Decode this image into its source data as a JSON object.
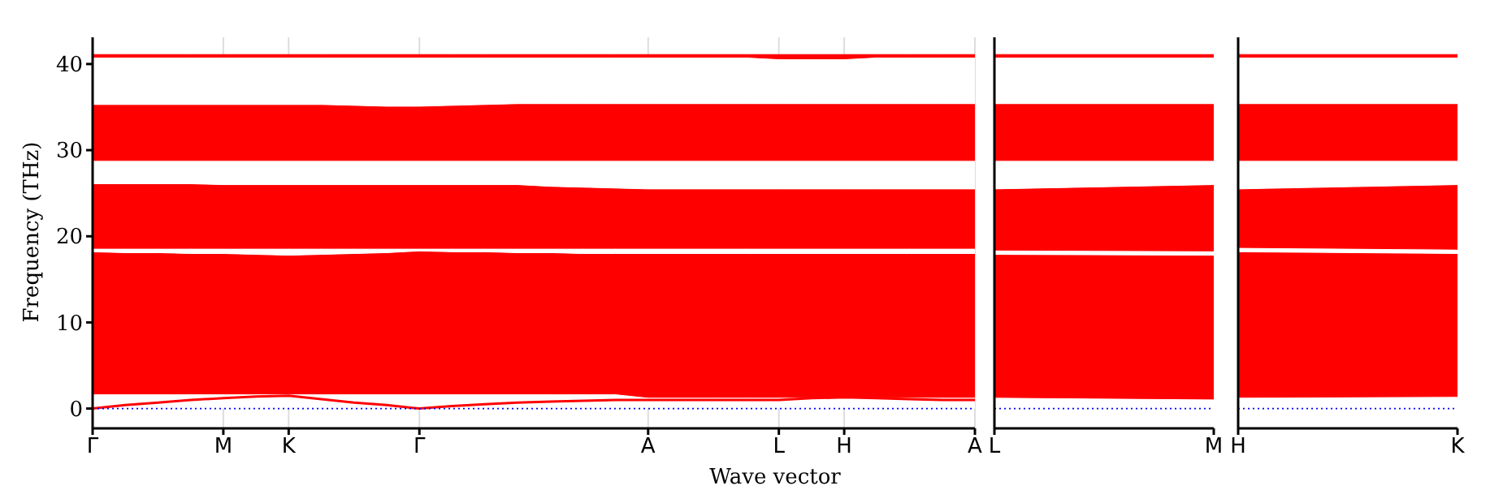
{
  "chart_data": [
    {
      "type": "area",
      "stacked": true,
      "xlabel": "Wave vector",
      "ylabel": "Frequency (THz)",
      "categories": [
        "Γ",
        null,
        null,
        null,
        "M",
        null,
        "K",
        null,
        null,
        null,
        "Γ",
        null,
        null,
        null,
        null,
        null,
        null,
        "A",
        null,
        null,
        null,
        "L",
        null,
        "H",
        null,
        null,
        null,
        "A"
      ],
      "ylim": [
        -2.3,
        43.1
      ],
      "yticks": [
        0,
        10,
        20,
        30,
        40
      ],
      "grid": "x",
      "ref_lines": [
        {
          "axis": "y",
          "value": 0,
          "color": "#0000ff",
          "line_style": "dotted"
        }
      ],
      "series": [
        {
          "color": "#ffffff",
          "values": [
            1.7,
            1.7,
            1.7,
            1.7,
            1.7,
            1.7,
            1.7,
            1.7,
            1.7,
            1.7,
            1.7,
            1.7,
            1.7,
            1.7,
            1.7,
            1.7,
            1.7,
            1.3,
            1.3,
            1.3,
            1.3,
            1.3,
            1.3,
            1.3,
            1.3,
            1.3,
            1.3,
            1.3
          ]
        },
        {
          "color": "#ff0000",
          "values": [
            16.5,
            16.4,
            16.4,
            16.3,
            16.3,
            16.2,
            16.1,
            16.2,
            16.3,
            16.4,
            16.6,
            16.5,
            16.5,
            16.4,
            16.4,
            16.3,
            16.3,
            16.7,
            16.7,
            16.7,
            16.7,
            16.7,
            16.7,
            16.7,
            16.7,
            16.7,
            16.7,
            16.7
          ]
        },
        {
          "color": "#ffffff",
          "values": [
            0.4,
            0.5,
            0.5,
            0.6,
            0.6,
            0.7,
            0.8,
            0.7,
            0.6,
            0.5,
            0.3,
            0.4,
            0.4,
            0.5,
            0.5,
            0.6,
            0.6,
            0.6,
            0.6,
            0.6,
            0.6,
            0.6,
            0.6,
            0.6,
            0.6,
            0.6,
            0.6,
            0.6
          ]
        },
        {
          "color": "#ff0000",
          "values": [
            7.5,
            7.5,
            7.5,
            7.5,
            7.4,
            7.4,
            7.4,
            7.4,
            7.4,
            7.4,
            7.4,
            7.4,
            7.4,
            7.4,
            7.2,
            7.1,
            7.0,
            6.9,
            6.9,
            6.9,
            6.9,
            6.9,
            6.9,
            6.9,
            6.9,
            6.9,
            6.9,
            6.9
          ]
        },
        {
          "color": "#ffffff",
          "values": [
            2.7,
            2.7,
            2.7,
            2.7,
            2.8,
            2.8,
            2.8,
            2.8,
            2.8,
            2.8,
            2.8,
            2.8,
            2.8,
            2.8,
            3.0,
            3.1,
            3.2,
            3.3,
            3.3,
            3.3,
            3.3,
            3.3,
            3.3,
            3.3,
            3.3,
            3.3,
            3.3,
            3.3
          ]
        },
        {
          "color": "#ff0000",
          "values": [
            6.5,
            6.5,
            6.5,
            6.5,
            6.5,
            6.5,
            6.5,
            6.5,
            6.4,
            6.3,
            6.3,
            6.4,
            6.5,
            6.6,
            6.6,
            6.6,
            6.6,
            6.6,
            6.6,
            6.6,
            6.6,
            6.6,
            6.6,
            6.6,
            6.6,
            6.6,
            6.6,
            6.6
          ]
        },
        {
          "color": "#ffffff",
          "values": [
            5.5,
            5.5,
            5.5,
            5.5,
            5.5,
            5.5,
            5.5,
            5.5,
            5.6,
            5.7,
            5.7,
            5.6,
            5.5,
            5.4,
            5.4,
            5.4,
            5.4,
            5.4,
            5.4,
            5.4,
            5.4,
            5.2,
            5.2,
            5.2,
            5.4,
            5.4,
            5.4,
            5.4
          ]
        },
        {
          "color": "#ff0000",
          "values": [
            0.3,
            0.3,
            0.3,
            0.3,
            0.3,
            0.3,
            0.3,
            0.3,
            0.3,
            0.3,
            0.3,
            0.3,
            0.3,
            0.3,
            0.3,
            0.3,
            0.3,
            0.3,
            0.3,
            0.3,
            0.3,
            0.5,
            0.5,
            0.5,
            0.3,
            0.3,
            0.3,
            0.3
          ]
        },
        {
          "type": "line",
          "color": "#ff0000",
          "values": [
            0,
            0.4,
            0.7,
            1.0,
            1.2,
            1.4,
            1.5,
            1.1,
            0.7,
            0.4,
            0,
            0.3,
            0.5,
            0.7,
            0.8,
            0.9,
            1.0,
            1.0,
            1.0,
            1.0,
            1.0,
            1.0,
            1.2,
            1.3,
            1.2,
            1.1,
            1.0,
            1.0
          ]
        }
      ]
    },
    {
      "type": "area",
      "stacked": true,
      "categories": [
        "L",
        "M"
      ],
      "ylim": [
        -2.3,
        43.1
      ],
      "tick_labels": "x",
      "ref_lines": [
        {
          "axis": "y",
          "value": 0,
          "color": "#0000ff",
          "line_style": "dotted"
        }
      ],
      "series": [
        {
          "color": "#ffffff",
          "values": [
            1.3,
            1.1
          ]
        },
        {
          "color": "#ff0000",
          "values": [
            16.6,
            16.7
          ]
        },
        {
          "color": "#ffffff",
          "values": [
            0.5,
            0.5
          ]
        },
        {
          "color": "#ff0000",
          "values": [
            7.1,
            7.7
          ]
        },
        {
          "color": "#ffffff",
          "values": [
            3.3,
            2.8
          ]
        },
        {
          "color": "#ff0000",
          "values": [
            6.6,
            6.6
          ]
        },
        {
          "color": "#ffffff",
          "values": [
            5.4,
            5.4
          ]
        },
        {
          "color": "#ff0000",
          "values": [
            0.3,
            0.3
          ]
        }
      ]
    },
    {
      "type": "area",
      "stacked": true,
      "categories": [
        "H",
        "K"
      ],
      "ylim": [
        -2.3,
        43.1
      ],
      "tick_labels": "x",
      "ref_lines": [
        {
          "axis": "y",
          "value": 0,
          "color": "#0000ff",
          "line_style": "dotted"
        }
      ],
      "series": [
        {
          "color": "#ffffff",
          "values": [
            1.3,
            1.4
          ]
        },
        {
          "color": "#ff0000",
          "values": [
            16.9,
            16.6
          ]
        },
        {
          "color": "#ffffff",
          "values": [
            0.5,
            0.5
          ]
        },
        {
          "color": "#ff0000",
          "values": [
            6.8,
            7.5
          ]
        },
        {
          "color": "#ffffff",
          "values": [
            3.3,
            2.8
          ]
        },
        {
          "color": "#ff0000",
          "values": [
            6.6,
            6.6
          ]
        },
        {
          "color": "#ffffff",
          "values": [
            5.4,
            5.4
          ]
        },
        {
          "color": "#ff0000",
          "values": [
            0.3,
            0.3
          ]
        }
      ]
    }
  ]
}
